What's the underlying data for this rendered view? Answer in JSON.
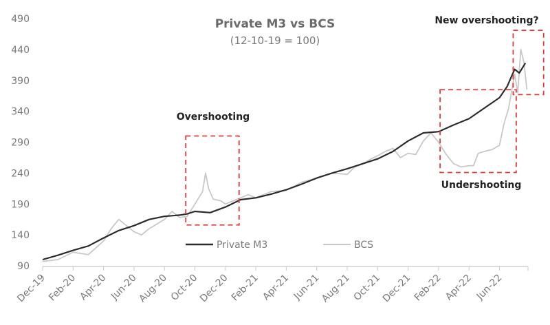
{
  "chart_data": {
    "type": "line",
    "title": "Private M3 vs BCS",
    "subtitle": "(12-10-19 = 100)",
    "xlabel": "",
    "ylabel": "",
    "ylim": [
      90,
      490
    ],
    "yticks": [
      90,
      140,
      190,
      240,
      290,
      340,
      390,
      440,
      490
    ],
    "x_unit": "months since Dec-19",
    "xlim": [
      0,
      31.7
    ],
    "xtick_labels": [
      "Dec-19",
      "Feb-20",
      "Apr-20",
      "Jun-20",
      "Aug-20",
      "Oct-20",
      "Dec-20",
      "Feb-21",
      "Apr-21",
      "Jun-21",
      "Aug-21",
      "Oct-21",
      "Dec-21",
      "Feb-22",
      "Apr-22",
      "Jun-22"
    ],
    "grid": false,
    "legend_position": "bottom-center",
    "series": [
      {
        "name": "Private M3",
        "color": "#2b2b2b",
        "x": [
          0,
          1,
          2,
          3,
          4,
          5,
          6,
          7,
          8,
          9,
          9.5,
          10,
          11,
          12,
          13,
          14,
          15,
          16,
          17,
          18,
          19,
          20,
          21,
          22,
          23,
          24,
          25,
          26,
          27,
          28,
          29,
          30,
          30.5,
          31,
          31.3,
          31.7
        ],
        "y": [
          100,
          107,
          115,
          122,
          135,
          147,
          155,
          165,
          170,
          172,
          174,
          178,
          176,
          185,
          197,
          200,
          206,
          213,
          222,
          232,
          240,
          247,
          255,
          263,
          275,
          292,
          305,
          307,
          318,
          328,
          345,
          362,
          380,
          408,
          402,
          418
        ]
      },
      {
        "name": "BCS",
        "color": "#c8c8c8",
        "x": [
          0,
          1,
          2,
          3,
          4,
          4.5,
          5,
          6,
          6.5,
          7,
          8,
          8.5,
          9,
          9.5,
          10,
          10.5,
          10.7,
          10.9,
          11.2,
          11.7,
          12,
          12.5,
          13,
          13.5,
          14,
          15,
          16,
          17,
          18,
          19,
          20,
          20.5,
          21,
          21.5,
          22,
          22.5,
          23,
          23.5,
          24,
          24.5,
          25,
          25.5,
          26,
          26.5,
          27,
          27.5,
          28,
          28.3,
          28.6,
          29,
          29.5,
          30,
          30.3,
          30.6,
          31,
          31.2,
          31.4,
          31.6,
          31.8
        ],
        "y": [
          97,
          100,
          112,
          108,
          130,
          150,
          165,
          145,
          140,
          150,
          165,
          178,
          168,
          170,
          190,
          210,
          240,
          215,
          198,
          195,
          190,
          195,
          200,
          205,
          200,
          210,
          212,
          225,
          232,
          240,
          238,
          250,
          255,
          262,
          268,
          275,
          280,
          265,
          272,
          270,
          292,
          305,
          290,
          270,
          255,
          250,
          252,
          252,
          272,
          275,
          278,
          285,
          320,
          345,
          400,
          370,
          440,
          420,
          375
        ]
      }
    ],
    "annotations": [
      {
        "text": "Overshooting",
        "box_x": [
          9.4,
          12.9
        ],
        "box_y": [
          156,
          300
        ]
      },
      {
        "text": "Undershooting",
        "box_x": [
          26.1,
          31.1
        ],
        "box_y": [
          241,
          375
        ]
      },
      {
        "text": "New overshooting?",
        "box_x": [
          30.9,
          32.9
        ],
        "box_y": [
          367,
          471
        ]
      }
    ],
    "annotation_color": "#e03a3a"
  }
}
